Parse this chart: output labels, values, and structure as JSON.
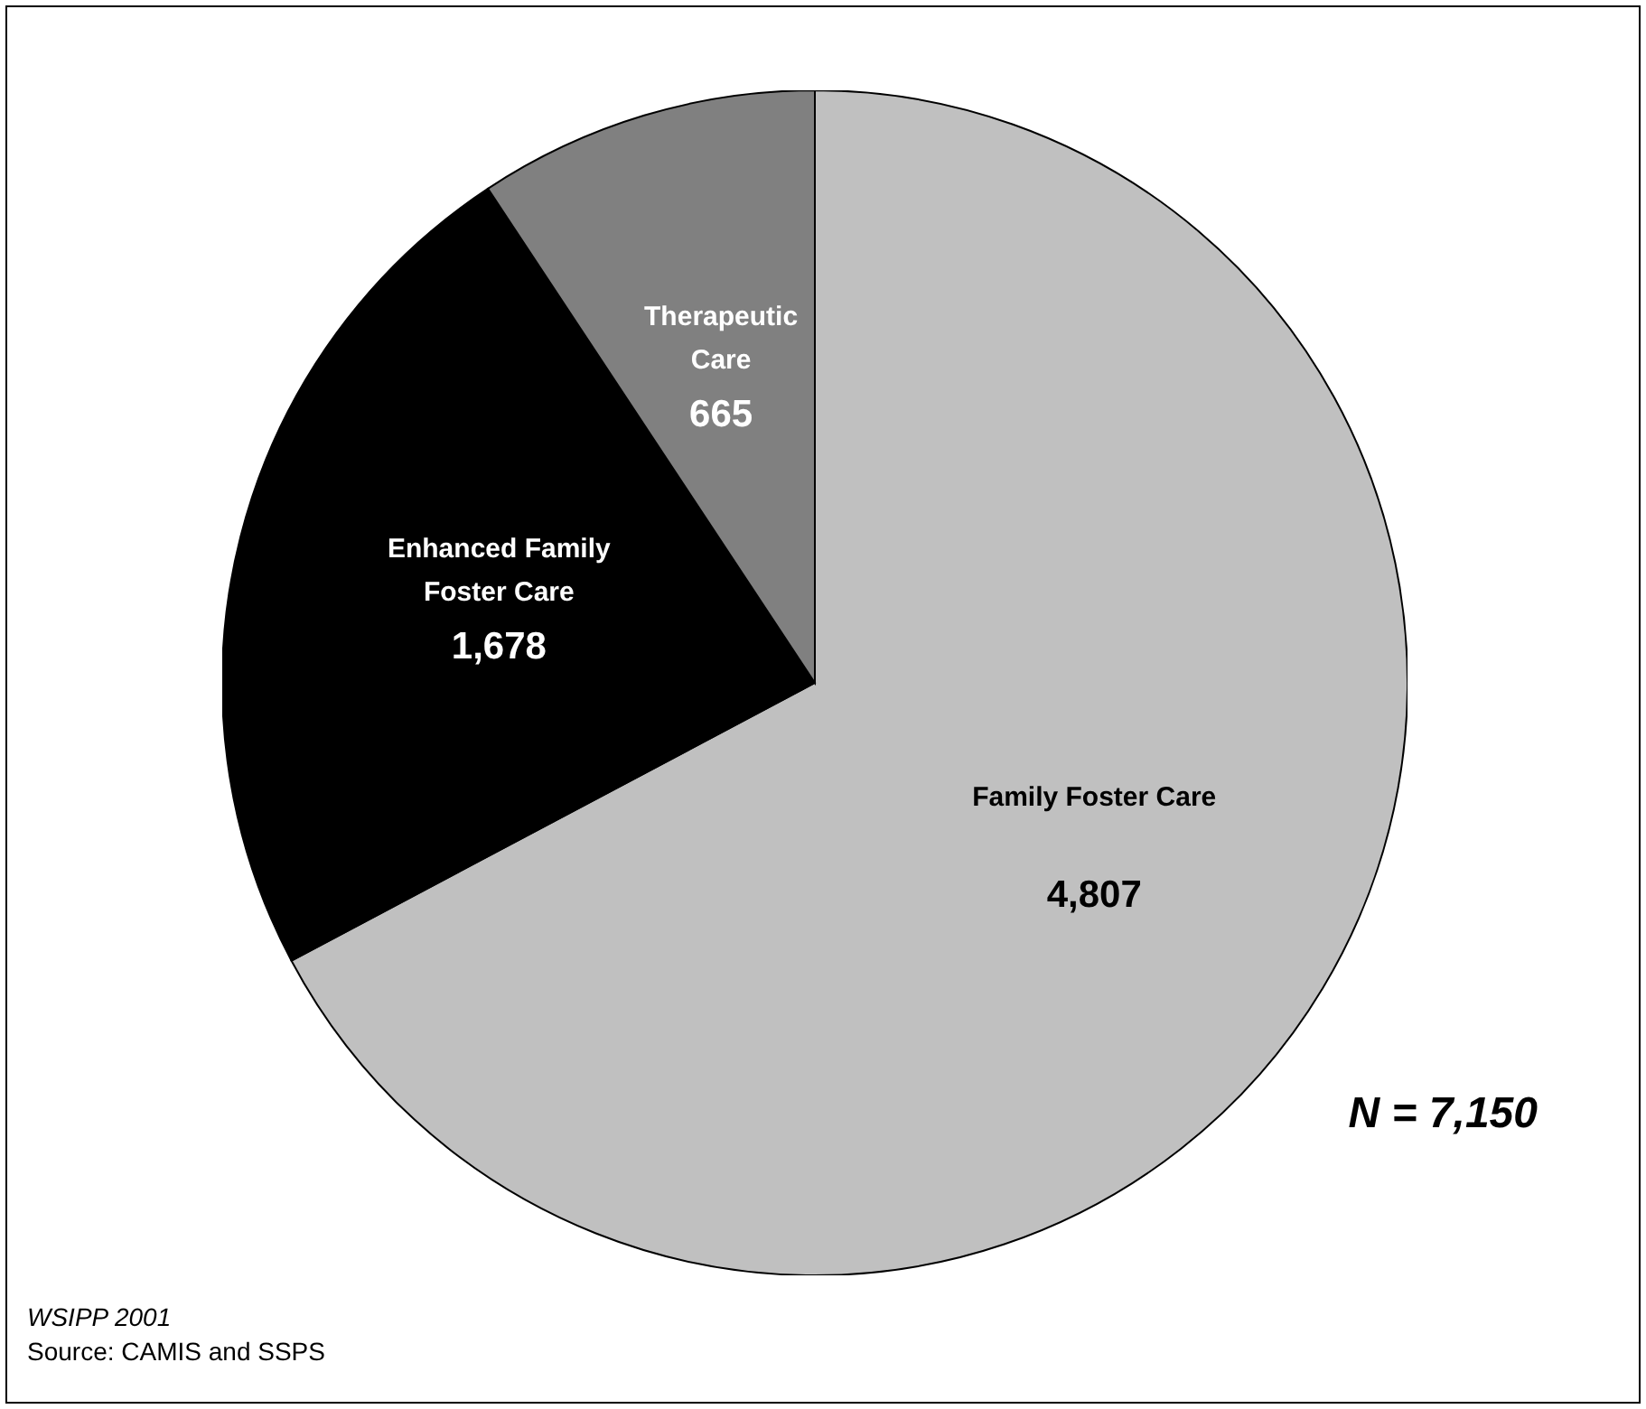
{
  "chart_data": {
    "type": "pie",
    "categories": [
      "Family Foster Care",
      "Enhanced Family Foster Care",
      "Therapeutic Care"
    ],
    "values": [
      4807,
      1678,
      665
    ],
    "colors": [
      "#c0c0c0",
      "#000000",
      "#808080"
    ],
    "value_labels": [
      "4,807",
      "1,678",
      "665"
    ],
    "annotations": [
      "N = 7,150",
      "WSIPP 2001",
      "Source:  CAMIS and SSPS"
    ]
  }
}
